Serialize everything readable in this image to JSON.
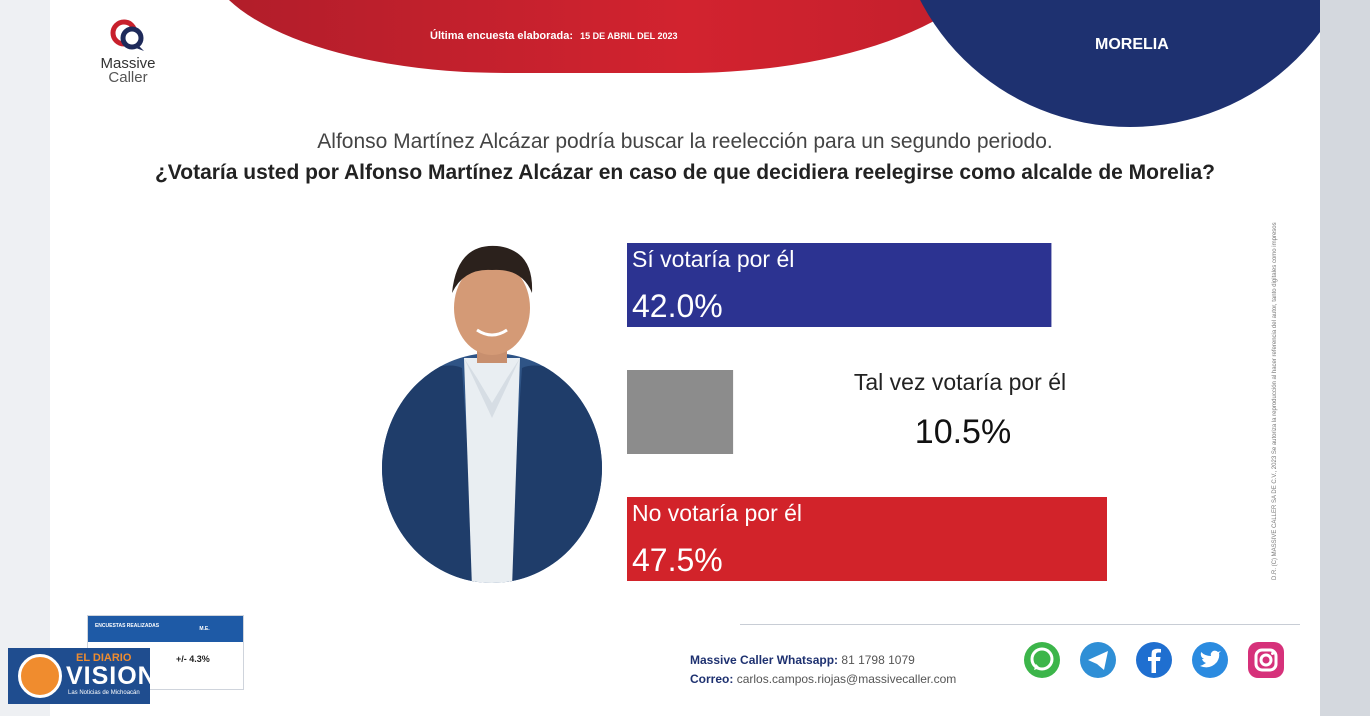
{
  "header": {
    "logo_line1": "Massive",
    "logo_line2": "Caller",
    "survey_label": "Última encuesta elaborada:",
    "survey_date": "15 DE ABRIL DEL 2023",
    "city": "MORELIA"
  },
  "question": {
    "intro": "Alfonso Martínez Alcázar podría buscar la reelección para un segundo periodo.",
    "text": "¿Votaría usted por Alfonso Martínez Alcázar en caso de que decidiera reelegirse como alcalde de Morelia?"
  },
  "chart_data": {
    "type": "bar",
    "categories": [
      "Sí votaría por él",
      "Tal vez votaría por él",
      "No votaría por él"
    ],
    "values": [
      42.0,
      10.5,
      47.5
    ],
    "value_labels": [
      "42.0%",
      "10.5%",
      "47.5%"
    ],
    "colors": [
      "#2c3391",
      "#8c8c8c",
      "#d2232a"
    ]
  },
  "side_text": "D.R. (C) MASSIVE CALLER SA DE C.V., 2023  Se autoriza la reproducción al hacer referencia del autor, tanto digitales como impresos",
  "sample_box": {
    "col1": "ENCUESTAS REALIZADAS",
    "col2": "M.E.",
    "margin": "+/- 4.3%"
  },
  "contact": {
    "whatsapp_label": "Massive Caller Whatsapp:",
    "whatsapp_number": "81 1798 1079",
    "email_label": "Correo:",
    "email": "carlos.campos.riojas@massivecaller.com"
  },
  "social": [
    "whatsapp-icon",
    "telegram-icon",
    "facebook-icon",
    "twitter-icon",
    "instagram-icon"
  ],
  "watermark": {
    "line1": "EL DIARIO",
    "line2": "VISION",
    "line3": "Las Noticias de Michoacán"
  }
}
